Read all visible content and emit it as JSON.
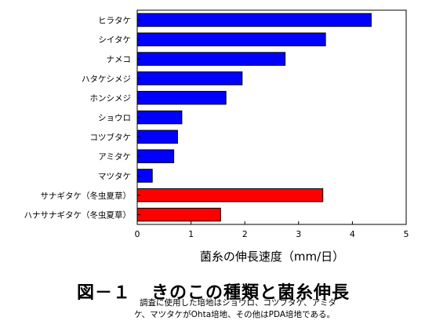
{
  "chart_data": {
    "type": "bar",
    "orientation": "horizontal",
    "categories": [
      "ヒラタケ",
      "シイタケ",
      "ナメコ",
      "ハタケシメジ",
      "ホンシメジ",
      "ショウロ",
      "コツブタケ",
      "アミタケ",
      "マツタケ",
      "サナギタケ（冬虫夏草）",
      "ハナサナギタケ（冬虫夏草）"
    ],
    "values": [
      4.35,
      3.5,
      2.75,
      1.95,
      1.65,
      0.83,
      0.75,
      0.68,
      0.28,
      3.45,
      1.55
    ],
    "bar_colors": [
      "#0000ff",
      "#0000ff",
      "#0000ff",
      "#0000ff",
      "#0000ff",
      "#0000ff",
      "#0000ff",
      "#0000ff",
      "#0000ff",
      "#ff0000",
      "#ff0000"
    ],
    "xlabel": "菌糸の伸長速度（mm/日）",
    "xlim": [
      0,
      5
    ],
    "xticks": [
      "0",
      "1",
      "2",
      "3",
      "4",
      "5"
    ],
    "grid": false
  },
  "figure": {
    "title_number": "図－１",
    "title_text": "きのこの種類と菌糸伸長",
    "note_line1": "調査に使用した培地はショウロ、コツブタケ、アミタ",
    "note_line2": "ケ、マツタケがOhta培地、その他はPDA培地である。"
  }
}
